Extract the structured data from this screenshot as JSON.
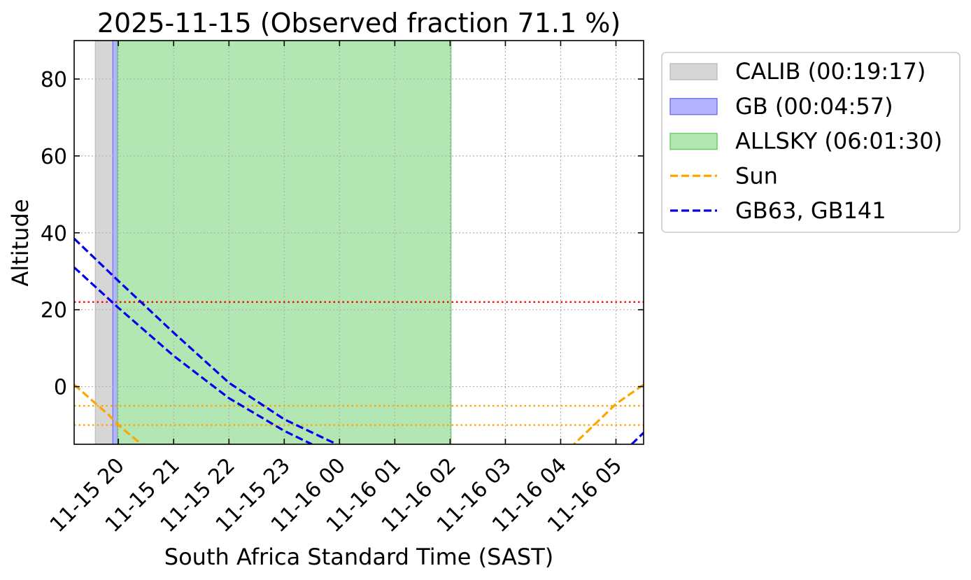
{
  "chart_data": {
    "type": "line",
    "title": "2025-11-15 (Observed fraction 71.1 %)",
    "xlabel": "South Africa Standard Time (SAST)",
    "ylabel": "Altitude",
    "xlim": [
      "2025-11-15 19:12",
      "2025-11-16 05:30"
    ],
    "ylim": [
      -15,
      90
    ],
    "grid": true,
    "legend_placement": "outside-upper-right",
    "x_ticks": [
      "11-15 20",
      "11-15 21",
      "11-15 22",
      "11-15 23",
      "11-16 00",
      "11-16 01",
      "11-16 02",
      "11-16 03",
      "11-16 04",
      "11-16 05"
    ],
    "y_ticks": [
      "0",
      "20",
      "40",
      "60",
      "80"
    ],
    "spans": [
      {
        "name": "CALIB (00:19:17)",
        "start": "2025-11-15 19:35",
        "end": "2025-11-15 19:54",
        "color": "#d6d6d6",
        "edge": "#bdbdbd"
      },
      {
        "name": "GB (00:04:57)",
        "start": "2025-11-15 19:54",
        "end": "2025-11-15 19:59",
        "color": "#b3b3ff",
        "edge": "#7070ee"
      },
      {
        "name": "ALLSKY (06:01:30)",
        "start": "2025-11-15 19:59",
        "end": "2025-11-16 02:01",
        "color": "#b2e6b2",
        "edge": "#66cc66"
      }
    ],
    "hlines": [
      {
        "y": 22,
        "color": "#ff0000"
      },
      {
        "y": -5,
        "color": "#ffa500"
      },
      {
        "y": -10,
        "color": "#ffa500"
      }
    ],
    "series": [
      {
        "name": "Sun",
        "color": "#ffa500",
        "segments": [
          {
            "x": [
              "2025-11-15 19:12",
              "2025-11-15 19:50",
              "2025-11-15 20:00",
              "2025-11-15 20:30"
            ],
            "y": [
              0.5,
              -7.5,
              -10,
              -16
            ]
          },
          {
            "x": [
              "2025-11-16 04:10",
              "2025-11-16 04:45",
              "2025-11-16 05:00",
              "2025-11-16 05:30"
            ],
            "y": [
              -16,
              -8,
              -4.5,
              0.5
            ]
          }
        ]
      },
      {
        "name": "GB63, GB141",
        "color": "#0000ee",
        "segments": [
          {
            "x": [
              "2025-11-15 19:12",
              "2025-11-15 20:00",
              "2025-11-15 21:00",
              "2025-11-15 22:00",
              "2025-11-15 23:00",
              "2025-11-15 23:57"
            ],
            "y": [
              38.5,
              27.5,
              14,
              1,
              -8.5,
              -15
            ]
          },
          {
            "x": [
              "2025-11-15 19:12",
              "2025-11-15 20:00",
              "2025-11-15 21:00",
              "2025-11-15 22:00",
              "2025-11-15 23:00",
              "2025-11-15 23:30"
            ],
            "y": [
              31,
              20.5,
              8,
              -3,
              -11.5,
              -15
            ]
          },
          {
            "x": [
              "2025-11-16 05:17",
              "2025-11-16 05:30"
            ],
            "y": [
              -15,
              -12
            ]
          }
        ]
      }
    ]
  }
}
